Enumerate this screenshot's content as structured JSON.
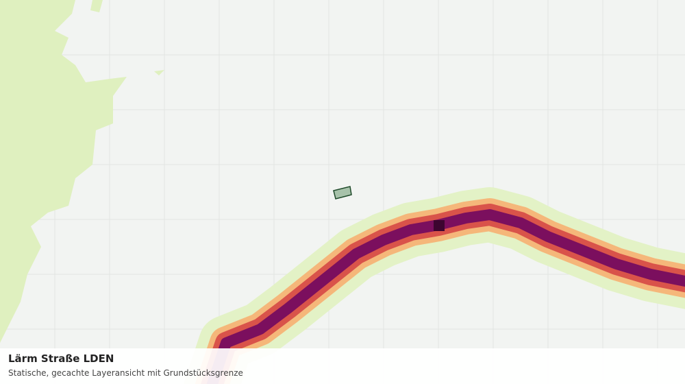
{
  "legend": {
    "title": "Lärm Straße LDEN",
    "subtitle": "Statische, gecachte Layeransicht mit Grundstücksgrenze"
  }
}
